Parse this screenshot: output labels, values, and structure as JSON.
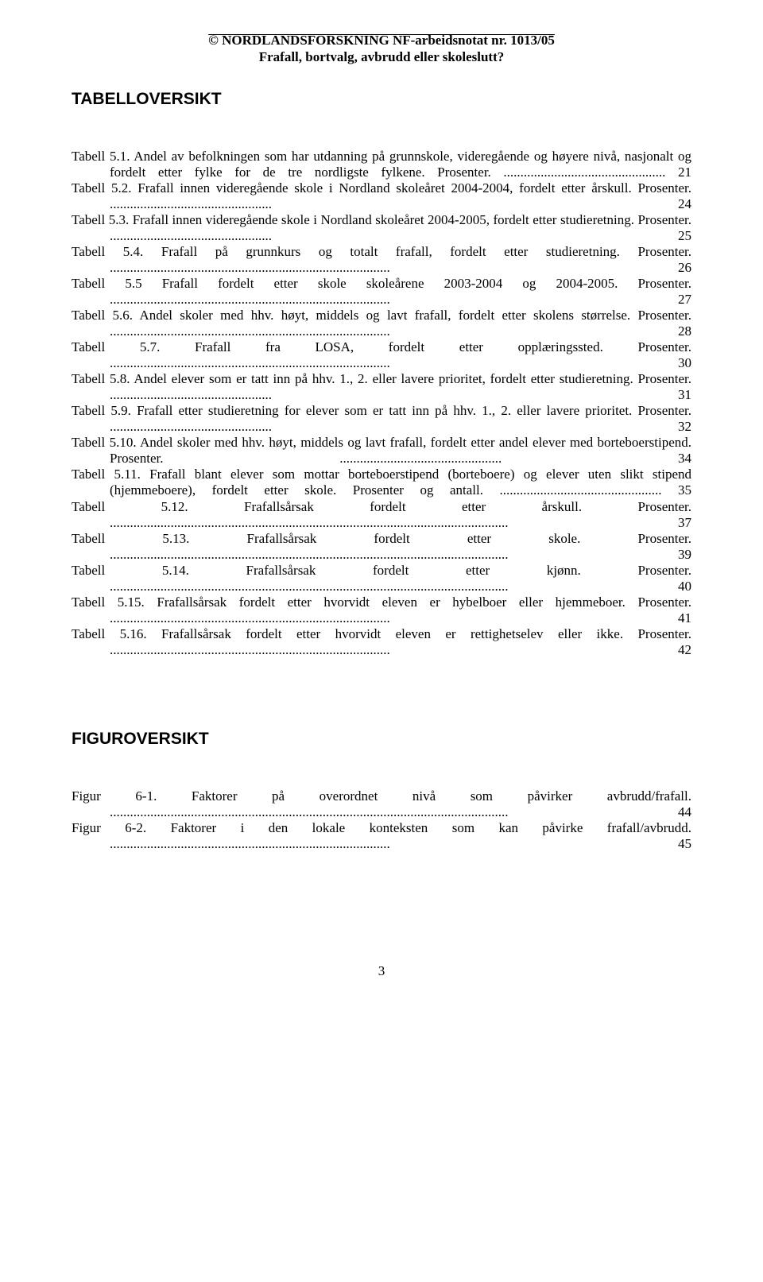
{
  "header": {
    "line1": "© NORDLANDSFORSKNING NF-arbeidsnotat nr. 1013/05",
    "line2": "Frafall, bortvalg, avbrudd eller skoleslutt?"
  },
  "sections": {
    "tables_heading": "TABELLOVERSIKT",
    "figures_heading": "FIGUROVERSIKT"
  },
  "table_entries": [
    {
      "text": "Tabell 5.1. Andel av befolkningen som har utdanning på grunnskole, videregående og høyere nivå, nasjonalt og fordelt etter fylke for de tre nordligste fylkene. Prosenter.",
      "page": "21"
    },
    {
      "text": "Tabell 5.2. Frafall innen videregående skole i Nordland skoleåret 2004-2004, fordelt etter årskull. Prosenter.",
      "page": "24"
    },
    {
      "text": "Tabell 5.3. Frafall innen videregående skole i Nordland skoleåret 2004-2005, fordelt etter studieretning. Prosenter.",
      "page": "25"
    },
    {
      "text": "Tabell 5.4. Frafall på grunnkurs og totalt frafall, fordelt etter studieretning. Prosenter.",
      "page": "26"
    },
    {
      "text": "Tabell 5.5 Frafall fordelt etter skole skoleårene 2003-2004 og 2004-2005. Prosenter. ",
      "page": "27"
    },
    {
      "text": "Tabell 5.6. Andel skoler med hhv. høyt, middels og lavt frafall, fordelt etter skolens størrelse. Prosenter.",
      "page": "28"
    },
    {
      "text": "Tabell 5.7. Frafall fra LOSA, fordelt etter opplæringssted. Prosenter. ",
      "page": "30"
    },
    {
      "text": "Tabell 5.8. Andel elever som er tatt inn på hhv. 1., 2. eller lavere prioritet, fordelt etter studieretning. Prosenter.",
      "page": "31"
    },
    {
      "text": "Tabell 5.9. Frafall etter studieretning for elever som er tatt inn på hhv. 1., 2. eller lavere prioritet. Prosenter.",
      "page": "32"
    },
    {
      "text": "Tabell 5.10. Andel skoler med hhv. høyt, middels og lavt frafall, fordelt etter andel elever med borteboerstipend. Prosenter.",
      "page": "34"
    },
    {
      "text": "Tabell 5.11. Frafall blant elever som mottar borteboerstipend (borteboere) og elever uten slikt stipend (hjemmeboere), fordelt etter skole. Prosenter og antall.",
      "page": "35"
    },
    {
      "text": "Tabell 5.12. Frafallsårsak fordelt etter årskull. Prosenter.",
      "page": "37"
    },
    {
      "text": "Tabell 5.13. Frafallsårsak fordelt etter skole. Prosenter.",
      "page": "39"
    },
    {
      "text": "Tabell 5.14. Frafallsårsak fordelt etter kjønn. Prosenter.",
      "page": "40"
    },
    {
      "text": "Tabell 5.15. Frafallsårsak fordelt etter hvorvidt eleven er hybelboer eller hjemmeboer. Prosenter. ",
      "page": "41"
    },
    {
      "text": "Tabell 5.16. Frafallsårsak fordelt etter hvorvidt eleven er rettighetselev eller ikke. Prosenter.",
      "page": "42"
    }
  ],
  "figure_entries": [
    {
      "text": "Figur 6-1. Faktorer på overordnet nivå som påvirker avbrudd/frafall.",
      "page": "44"
    },
    {
      "text": "Figur 6-2. Faktorer i den lokale konteksten som kan påvirke frafall/avbrudd. ",
      "page": "45"
    }
  ],
  "dot_leaders": {
    "long": "......................................................................................................................",
    "med": "...................................................................................",
    "short": "................................................"
  },
  "page_number": "3"
}
